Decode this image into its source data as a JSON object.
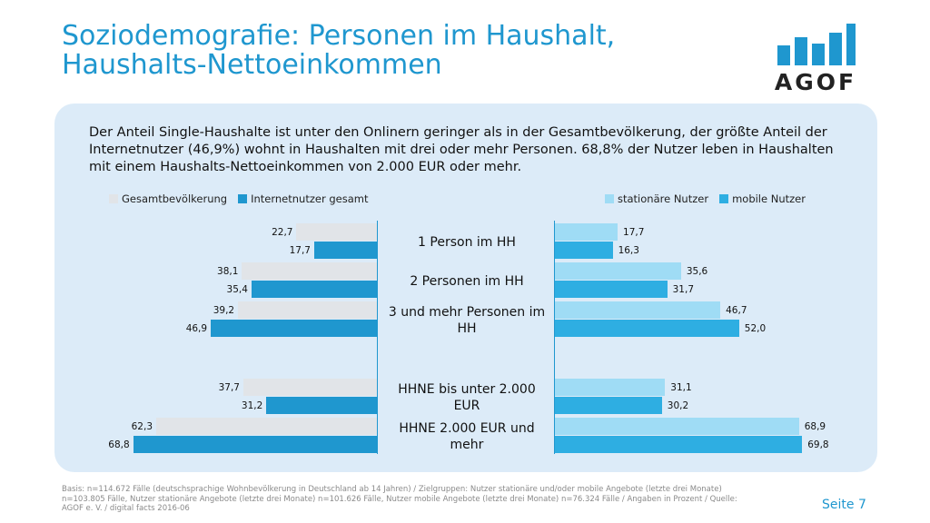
{
  "header": {
    "title_line1": "Soziodemografie: Personen im Haushalt,",
    "title_line2": "Haushalts-Nettoeinkommen"
  },
  "logo": {
    "text": "AGOF",
    "bar_color": "#1f97cf"
  },
  "intro": "Der Anteil Single-Haushalte ist unter den Onlinern geringer als in der Gesamtbevölkerung, der größte Anteil der Internetnutzer (46,9%) wohnt in Haushalten mit drei oder mehr Personen. 68,8% der Nutzer leben in Haushalten mit einem Haushalts-Nettoeinkommen von 2.000 EUR oder mehr.",
  "chart_data": {
    "type": "bar",
    "orientation": "horizontal",
    "categories": [
      "1 Person im HH",
      "2 Personen im HH",
      "3 und mehr Personen im HH",
      "HHNE bis unter 2.000 EUR",
      "HHNE 2.000 EUR und mehr"
    ],
    "left_series": [
      {
        "name": "Gesamtbevölkerung",
        "color": "#e1e4e8",
        "values": [
          22.7,
          38.1,
          39.2,
          37.7,
          62.3
        ],
        "labels": [
          "22,7",
          "38,1",
          "39,2",
          "37,7",
          "62,3"
        ]
      },
      {
        "name": "Internetnutzer gesamt",
        "color": "#1f97cf",
        "values": [
          17.7,
          35.4,
          46.9,
          31.2,
          68.8
        ],
        "labels": [
          "17,7",
          "35,4",
          "46,9",
          "31,2",
          "68,8"
        ]
      }
    ],
    "right_series": [
      {
        "name": "stationäre Nutzer",
        "color": "#9fdcf5",
        "values": [
          17.7,
          35.6,
          46.7,
          31.1,
          68.9
        ],
        "labels": [
          "17,7",
          "35,6",
          "46,7",
          "31,1",
          "68,9"
        ]
      },
      {
        "name": "mobile Nutzer",
        "color": "#2eaee2",
        "values": [
          16.3,
          31.7,
          52.0,
          30.2,
          69.8
        ],
        "labels": [
          "16,3",
          "31,7",
          "52,0",
          "30,2",
          "69,8"
        ]
      }
    ],
    "legend_left": [
      "Gesamtbevölkerung",
      "Internetnutzer gesamt"
    ],
    "legend_right": [
      "stationäre Nutzer",
      "mobile Nutzer"
    ],
    "value_axis_max": 70
  },
  "footnote": "Basis: n=114.672 Fälle (deutschsprachige Wohnbevölkerung in Deutschland ab 14 Jahren) / Zielgruppen: Nutzer stationäre und/oder mobile Angebote (letzte drei Monate) n=103.805 Fälle, Nutzer stationäre Angebote (letzte drei Monate) n=101.626 Fälle, Nutzer mobile Angebote (letzte drei Monate) n=76.324 Fälle / Angaben in Prozent / Quelle: AGOF e. V. / digital facts 2016-06",
  "page_label": "Seite 7"
}
